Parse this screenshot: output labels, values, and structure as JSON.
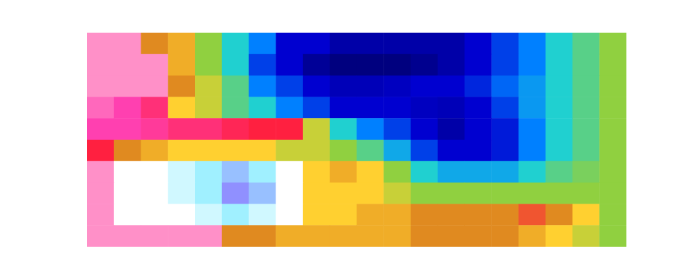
{
  "chart_data": {
    "type": "heatmap",
    "tick_labels": false,
    "zlim": [
      0,
      12
    ],
    "values": [
      [
        9,
        9,
        6,
        5.5,
        4,
        3,
        2,
        1,
        1,
        0.5,
        0.5,
        0.5,
        0.5,
        0.5,
        1,
        1.5,
        2,
        3,
        3.5,
        4
      ],
      [
        9,
        9,
        9,
        5.5,
        4,
        3,
        1.5,
        1,
        0.3,
        0,
        0,
        0,
        0.2,
        0.5,
        1,
        1.5,
        2,
        3,
        3.5,
        4
      ],
      [
        9,
        9,
        9,
        6,
        4.5,
        3.5,
        2,
        1.5,
        1,
        0.7,
        0.7,
        0.8,
        1,
        1,
        1.3,
        1.8,
        2.3,
        3,
        3.5,
        4
      ],
      [
        8.5,
        8,
        7.5,
        5,
        4.5,
        3.5,
        3,
        2,
        1.5,
        1,
        1,
        1,
        0.8,
        0.7,
        1,
        1.5,
        2.3,
        3,
        3.5,
        4
      ],
      [
        8,
        8,
        7.8,
        7.5,
        7.5,
        7.2,
        7,
        7,
        4.5,
        3,
        2,
        1.5,
        1,
        0.5,
        1,
        1.2,
        2,
        3,
        3.5,
        4
      ],
      [
        7,
        6,
        5.5,
        5,
        5,
        5,
        5,
        4.5,
        4.5,
        4,
        3.5,
        2.5,
        1.5,
        1,
        1,
        1.2,
        2,
        3,
        3.5,
        4
      ],
      [
        9,
        10,
        10,
        10.5,
        11,
        11.5,
        11,
        10,
        5,
        5.5,
        5,
        4,
        3,
        2.5,
        2.5,
        2.5,
        3,
        3.5,
        3.8,
        4
      ],
      [
        9,
        10,
        10,
        10.5,
        11,
        12,
        11.5,
        10,
        5,
        5,
        5,
        4.5,
        4,
        4,
        4,
        4,
        4,
        4,
        4,
        4
      ],
      [
        9,
        10,
        10,
        10,
        10.5,
        11,
        10.5,
        10,
        5,
        5,
        5.5,
        5.5,
        6,
        6,
        6,
        6,
        6.5,
        6,
        5,
        4
      ],
      [
        9,
        9,
        9,
        9,
        9,
        6,
        6,
        5.5,
        5.5,
        5.5,
        5.5,
        5.5,
        6,
        6,
        6,
        6,
        5.5,
        5,
        4.5,
        4
      ]
    ]
  }
}
